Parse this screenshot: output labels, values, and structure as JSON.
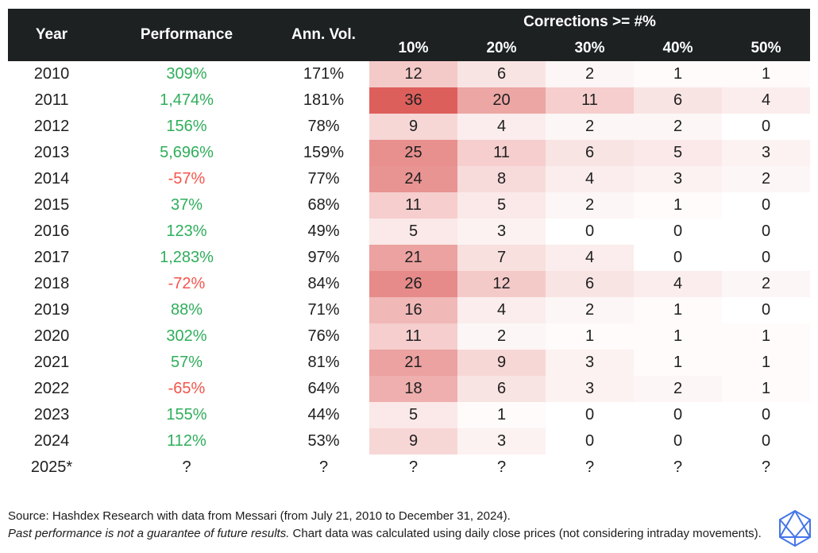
{
  "chart_data": {
    "type": "heatmap",
    "header": {
      "year": "Year",
      "performance": "Performance",
      "ann_vol": "Ann. Vol.",
      "corrections_group": "Corrections >= #%",
      "correction_levels": [
        "10%",
        "20%",
        "30%",
        "40%",
        "50%"
      ]
    },
    "rows": [
      {
        "year": "2010",
        "performance": "309%",
        "trend": "positive",
        "ann_vol": "171%",
        "corrections": [
          12,
          6,
          2,
          1,
          1
        ]
      },
      {
        "year": "2011",
        "performance": "1,474%",
        "trend": "positive",
        "ann_vol": "181%",
        "corrections": [
          36,
          20,
          11,
          6,
          4
        ]
      },
      {
        "year": "2012",
        "performance": "156%",
        "trend": "positive",
        "ann_vol": "78%",
        "corrections": [
          9,
          4,
          2,
          2,
          0
        ]
      },
      {
        "year": "2013",
        "performance": "5,696%",
        "trend": "positive",
        "ann_vol": "159%",
        "corrections": [
          25,
          11,
          6,
          5,
          3
        ]
      },
      {
        "year": "2014",
        "performance": "-57%",
        "trend": "negative",
        "ann_vol": "77%",
        "corrections": [
          24,
          8,
          4,
          3,
          2
        ]
      },
      {
        "year": "2015",
        "performance": "37%",
        "trend": "positive",
        "ann_vol": "68%",
        "corrections": [
          11,
          5,
          2,
          1,
          0
        ]
      },
      {
        "year": "2016",
        "performance": "123%",
        "trend": "positive",
        "ann_vol": "49%",
        "corrections": [
          5,
          3,
          0,
          0,
          0
        ]
      },
      {
        "year": "2017",
        "performance": "1,283%",
        "trend": "positive",
        "ann_vol": "97%",
        "corrections": [
          21,
          7,
          4,
          0,
          0
        ]
      },
      {
        "year": "2018",
        "performance": "-72%",
        "trend": "negative",
        "ann_vol": "84%",
        "corrections": [
          26,
          12,
          6,
          4,
          2
        ]
      },
      {
        "year": "2019",
        "performance": "88%",
        "trend": "positive",
        "ann_vol": "71%",
        "corrections": [
          16,
          4,
          2,
          1,
          0
        ]
      },
      {
        "year": "2020",
        "performance": "302%",
        "trend": "positive",
        "ann_vol": "76%",
        "corrections": [
          11,
          2,
          1,
          1,
          1
        ]
      },
      {
        "year": "2021",
        "performance": "57%",
        "trend": "positive",
        "ann_vol": "81%",
        "corrections": [
          21,
          9,
          3,
          1,
          1
        ]
      },
      {
        "year": "2022",
        "performance": "-65%",
        "trend": "negative",
        "ann_vol": "64%",
        "corrections": [
          18,
          6,
          3,
          2,
          1
        ]
      },
      {
        "year": "2023",
        "performance": "155%",
        "trend": "positive",
        "ann_vol": "44%",
        "corrections": [
          5,
          1,
          0,
          0,
          0
        ]
      },
      {
        "year": "2024",
        "performance": "112%",
        "trend": "positive",
        "ann_vol": "53%",
        "corrections": [
          9,
          3,
          0,
          0,
          0
        ]
      },
      {
        "year": "2025*",
        "performance": "?",
        "trend": "unknown",
        "ann_vol": "?",
        "corrections": [
          "?",
          "?",
          "?",
          "?",
          "?"
        ]
      }
    ],
    "heatmap": {
      "min_color": "#ffffff",
      "max_color": "#dd5f5c",
      "max_value": 36,
      "applies_to": "correction columns only"
    },
    "legend_position": "none",
    "grid": false
  },
  "colors": {
    "positive": "#2fae5b",
    "negative": "#f4554b",
    "unknown": "#202020",
    "header_bg": "#1d2121",
    "header_text": "#ffffff",
    "body_text": "#202020",
    "logo_blue": "#4576e8"
  },
  "footer": {
    "line1": "Source: Hashdex Research with data from Messari (from July 21, 2010 to December 31, 2024).",
    "line2_italic": "Past performance is not a guarantee of future results.",
    "line2_regular": "Chart data was calculated using daily close prices (not considering intraday movements)."
  },
  "logo": {
    "name": "hashdex-polyhedron-logo"
  }
}
